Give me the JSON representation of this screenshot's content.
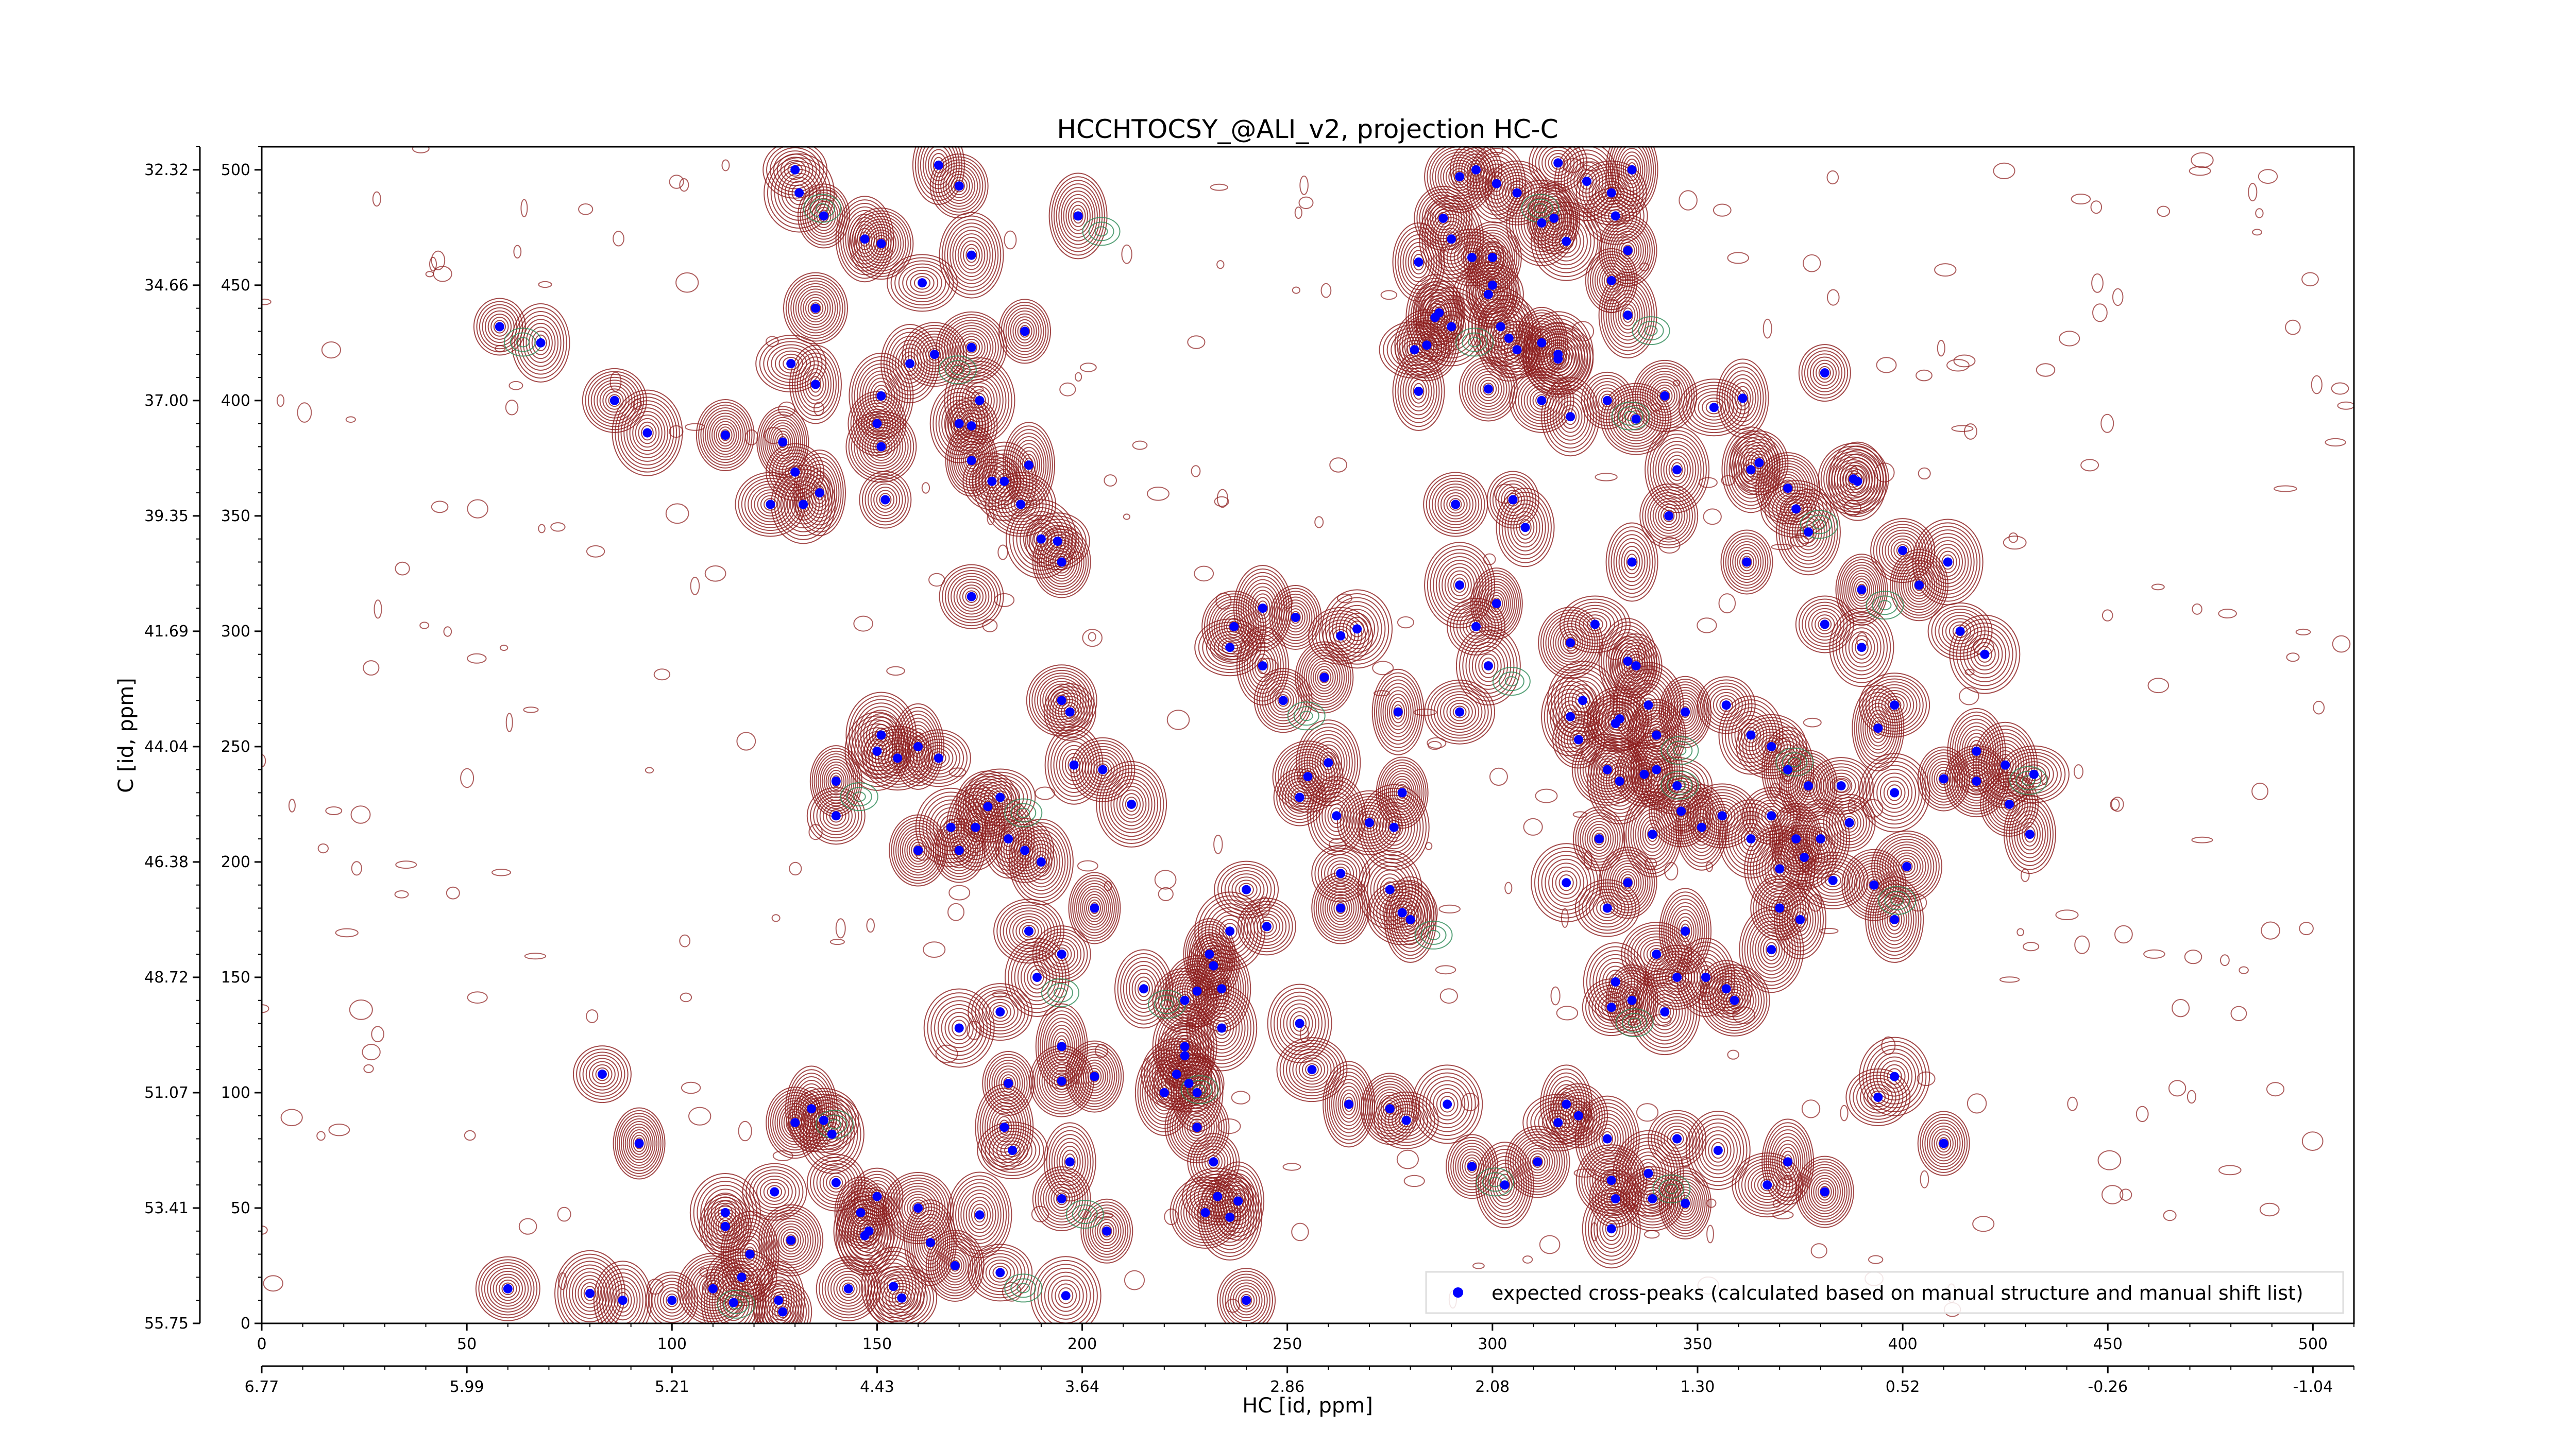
{
  "chart_data": {
    "type": "scatter",
    "title": "HCCHTOCSY_@ALI_v2, projection HC-C",
    "xlabel": "HC [id, ppm]",
    "ylabel": "C [id, ppm]",
    "x_index_range": [
      0,
      510
    ],
    "y_index_range": [
      0,
      510
    ],
    "x_index_ticks": [
      "0",
      "50",
      "100",
      "150",
      "200",
      "250",
      "300",
      "350",
      "400",
      "450",
      "500"
    ],
    "y_index_ticks": [
      "0",
      "50",
      "100",
      "150",
      "200",
      "250",
      "300",
      "350",
      "400",
      "450",
      "500"
    ],
    "x_ppm_ticks": [
      "6.77",
      "5.99",
      "5.21",
      "4.43",
      "3.64",
      "2.86",
      "2.08",
      "1.30",
      "0.52",
      "-0.26",
      "-1.04"
    ],
    "y_ppm_ticks": [
      "55.75",
      "53.41",
      "51.07",
      "48.72",
      "46.38",
      "44.04",
      "41.69",
      "39.35",
      "37.00",
      "34.66",
      "32.32"
    ],
    "colors": {
      "peaks": "#0000ff",
      "positive_contours": "#8b1a1a",
      "negative_contours": "#2e8b57"
    },
    "legend": {
      "placement": "bottom-right",
      "entries": [
        "expected cross-peaks (calculated based on manual structure and manual shift list)"
      ]
    },
    "series": [
      {
        "name": "expected cross-peaks (calculated based on manual structure and manual shift list)",
        "points": [
          [
            58,
            432
          ],
          [
            68,
            425
          ],
          [
            86,
            400
          ],
          [
            94,
            386
          ],
          [
            127,
            382
          ],
          [
            130,
            369
          ],
          [
            132,
            355
          ],
          [
            124,
            355
          ],
          [
            136,
            360
          ],
          [
            113,
            385
          ],
          [
            130,
            500
          ],
          [
            131,
            490
          ],
          [
            137,
            480
          ],
          [
            147,
            470
          ],
          [
            135,
            440
          ],
          [
            129,
            416
          ],
          [
            135,
            407
          ],
          [
            150,
            390
          ],
          [
            151,
            402
          ],
          [
            151,
            380
          ],
          [
            152,
            357
          ],
          [
            158,
            416
          ],
          [
            164,
            420
          ],
          [
            175,
            400
          ],
          [
            173,
            374
          ],
          [
            178,
            365
          ],
          [
            181,
            365
          ],
          [
            185,
            355
          ],
          [
            187,
            372
          ],
          [
            195,
            330
          ],
          [
            194,
            339
          ],
          [
            190,
            340
          ],
          [
            186,
            430
          ],
          [
            199,
            480
          ],
          [
            151,
            468
          ],
          [
            161,
            451
          ],
          [
            165,
            502
          ],
          [
            170,
            493
          ],
          [
            173,
            463
          ],
          [
            173,
            423
          ],
          [
            173,
            389
          ],
          [
            170,
            390
          ],
          [
            173,
            315
          ],
          [
            151,
            255
          ],
          [
            140,
            235
          ],
          [
            140,
            220
          ],
          [
            150,
            248
          ],
          [
            155,
            245
          ],
          [
            160,
            250
          ],
          [
            160,
            205
          ],
          [
            165,
            245
          ],
          [
            168,
            215
          ],
          [
            170,
            205
          ],
          [
            174,
            215
          ],
          [
            177,
            224
          ],
          [
            180,
            228
          ],
          [
            182,
            210
          ],
          [
            186,
            205
          ],
          [
            190,
            200
          ],
          [
            195,
            270
          ],
          [
            197,
            265
          ],
          [
            198,
            242
          ],
          [
            205,
            240
          ],
          [
            212,
            225
          ],
          [
            203,
            180
          ],
          [
            195,
            160
          ],
          [
            189,
            150
          ],
          [
            187,
            170
          ],
          [
            195,
            120
          ],
          [
            203,
            107
          ],
          [
            180,
            135
          ],
          [
            170,
            128
          ],
          [
            182,
            104
          ],
          [
            181,
            85
          ],
          [
            195,
            105
          ],
          [
            183,
            75
          ],
          [
            197,
            70
          ],
          [
            195,
            54
          ],
          [
            175,
            47
          ],
          [
            160,
            50
          ],
          [
            150,
            55
          ],
          [
            147,
            38
          ],
          [
            143,
            15
          ],
          [
            148,
            40
          ],
          [
            146,
            48
          ],
          [
            140,
            61
          ],
          [
            139,
            82
          ],
          [
            137,
            88
          ],
          [
            134,
            93
          ],
          [
            130,
            87
          ],
          [
            125,
            57
          ],
          [
            113,
            48
          ],
          [
            113,
            42
          ],
          [
            119,
            30
          ],
          [
            129,
            36
          ],
          [
            117,
            20
          ],
          [
            126,
            10
          ],
          [
            127,
            5
          ],
          [
            115,
            9
          ],
          [
            110,
            15
          ],
          [
            100,
            10
          ],
          [
            88,
            10
          ],
          [
            60,
            15
          ],
          [
            80,
            13
          ],
          [
            92,
            78
          ],
          [
            83,
            108
          ],
          [
            154,
            16
          ],
          [
            156,
            11
          ],
          [
            163,
            35
          ],
          [
            169,
            25
          ],
          [
            180,
            22
          ],
          [
            196,
            12
          ],
          [
            206,
            40
          ],
          [
            220,
            100
          ],
          [
            228,
            85
          ],
          [
            233,
            55
          ],
          [
            238,
            53
          ],
          [
            240,
            10
          ],
          [
            236,
            46
          ],
          [
            230,
            48
          ],
          [
            232,
            70
          ],
          [
            215,
            145
          ],
          [
            225,
            140
          ],
          [
            234,
            128
          ],
          [
            231,
            160
          ],
          [
            245,
            172
          ],
          [
            253,
            130
          ],
          [
            256,
            110
          ],
          [
            265,
            95
          ],
          [
            275,
            93
          ],
          [
            279,
            88
          ],
          [
            289,
            95
          ],
          [
            295,
            68
          ],
          [
            303,
            60
          ],
          [
            311,
            70
          ],
          [
            316,
            87
          ],
          [
            318,
            95
          ],
          [
            321,
            90
          ],
          [
            328,
            80
          ],
          [
            329,
            62
          ],
          [
            330,
            54
          ],
          [
            329,
            41
          ],
          [
            339,
            54
          ],
          [
            338,
            65
          ],
          [
            347,
            52
          ],
          [
            345,
            80
          ],
          [
            355,
            75
          ],
          [
            367,
            60
          ],
          [
            372,
            70
          ],
          [
            381,
            57
          ],
          [
            394,
            98
          ],
          [
            398,
            107
          ],
          [
            410,
            78
          ],
          [
            398,
            175
          ],
          [
            393,
            190
          ],
          [
            383,
            192
          ],
          [
            375,
            175
          ],
          [
            370,
            180
          ],
          [
            368,
            162
          ],
          [
            359,
            140
          ],
          [
            357,
            145
          ],
          [
            352,
            150
          ],
          [
            345,
            150
          ],
          [
            342,
            135
          ],
          [
            334,
            140
          ],
          [
            329,
            137
          ],
          [
            330,
            148
          ],
          [
            340,
            160
          ],
          [
            347,
            170
          ],
          [
            333,
            191
          ],
          [
            328,
            180
          ],
          [
            318,
            191
          ],
          [
            326,
            210
          ],
          [
            339,
            212
          ],
          [
            346,
            222
          ],
          [
            345,
            233
          ],
          [
            340,
            240
          ],
          [
            337,
            238
          ],
          [
            331,
            235
          ],
          [
            328,
            240
          ],
          [
            321,
            253
          ],
          [
            319,
            263
          ],
          [
            331,
            262
          ],
          [
            338,
            268
          ],
          [
            347,
            265
          ],
          [
            357,
            268
          ],
          [
            363,
            255
          ],
          [
            368,
            250
          ],
          [
            372,
            240
          ],
          [
            377,
            233
          ],
          [
            385,
            233
          ],
          [
            398,
            230
          ],
          [
            410,
            236
          ],
          [
            418,
            248
          ],
          [
            418,
            235
          ],
          [
            432,
            238
          ],
          [
            431,
            212
          ],
          [
            426,
            225
          ],
          [
            425,
            242
          ],
          [
            401,
            198
          ],
          [
            387,
            217
          ],
          [
            380,
            210
          ],
          [
            376,
            202
          ],
          [
            370,
            197
          ],
          [
            374,
            210
          ],
          [
            368,
            220
          ],
          [
            363,
            210
          ],
          [
            356,
            220
          ],
          [
            351,
            215
          ],
          [
            340,
            255
          ],
          [
            330,
            260
          ],
          [
            322,
            270
          ],
          [
            335,
            285
          ],
          [
            333,
            287
          ],
          [
            319,
            295
          ],
          [
            325,
            303
          ],
          [
            334,
            330
          ],
          [
            343,
            350
          ],
          [
            345,
            370
          ],
          [
            335,
            392
          ],
          [
            328,
            400
          ],
          [
            319,
            393
          ],
          [
            312,
            400
          ],
          [
            316,
            420
          ],
          [
            312,
            425
          ],
          [
            306,
            422
          ],
          [
            302,
            432
          ],
          [
            299,
            446
          ],
          [
            300,
            450
          ],
          [
            300,
            462
          ],
          [
            295,
            462
          ],
          [
            290,
            432
          ],
          [
            287,
            438
          ],
          [
            286,
            436
          ],
          [
            284,
            424
          ],
          [
            281,
            422
          ],
          [
            282,
            460
          ],
          [
            288,
            479
          ],
          [
            290,
            470
          ],
          [
            292,
            497
          ],
          [
            296,
            500
          ],
          [
            301,
            494
          ],
          [
            306,
            490
          ],
          [
            312,
            477
          ],
          [
            315,
            479
          ],
          [
            316,
            503
          ],
          [
            323,
            495
          ],
          [
            329,
            490
          ],
          [
            334,
            500
          ],
          [
            333,
            465
          ],
          [
            330,
            480
          ],
          [
            318,
            469
          ],
          [
            329,
            452
          ],
          [
            333,
            437
          ],
          [
            342,
            402
          ],
          [
            354,
            397
          ],
          [
            361,
            401
          ],
          [
            365,
            373
          ],
          [
            377,
            343
          ],
          [
            388,
            366
          ],
          [
            381,
            412
          ],
          [
            389,
            365
          ],
          [
            400,
            335
          ],
          [
            411,
            330
          ],
          [
            390,
            318
          ],
          [
            381,
            303
          ],
          [
            390,
            293
          ],
          [
            398,
            268
          ],
          [
            394,
            258
          ],
          [
            404,
            320
          ],
          [
            414,
            300
          ],
          [
            420,
            290
          ],
          [
            362,
            330
          ],
          [
            363,
            370
          ],
          [
            372,
            362
          ],
          [
            374,
            353
          ],
          [
            282,
            404
          ],
          [
            299,
            405
          ],
          [
            304,
            427
          ],
          [
            316,
            418
          ],
          [
            305,
            357
          ],
          [
            308,
            345
          ],
          [
            291,
            355
          ],
          [
            292,
            320
          ],
          [
            301,
            312
          ],
          [
            296,
            302
          ],
          [
            299,
            285
          ],
          [
            292,
            265
          ],
          [
            277,
            265
          ],
          [
            259,
            280
          ],
          [
            263,
            298
          ],
          [
            267,
            301
          ],
          [
            252,
            306
          ],
          [
            244,
            310
          ],
          [
            237,
            302
          ],
          [
            236,
            293
          ],
          [
            244,
            285
          ],
          [
            249,
            270
          ],
          [
            260,
            243
          ],
          [
            255,
            237
          ],
          [
            253,
            228
          ],
          [
            262,
            220
          ],
          [
            270,
            217
          ],
          [
            276,
            215
          ],
          [
            278,
            230
          ],
          [
            263,
            195
          ],
          [
            275,
            188
          ],
          [
            278,
            178
          ],
          [
            280,
            175
          ],
          [
            263,
            180
          ],
          [
            240,
            188
          ],
          [
            236,
            170
          ],
          [
            232,
            155
          ],
          [
            234,
            145
          ],
          [
            228,
            144
          ],
          [
            226,
            104
          ],
          [
            228,
            100
          ],
          [
            225,
            116
          ],
          [
            225,
            120
          ],
          [
            223,
            108
          ]
        ]
      }
    ]
  }
}
